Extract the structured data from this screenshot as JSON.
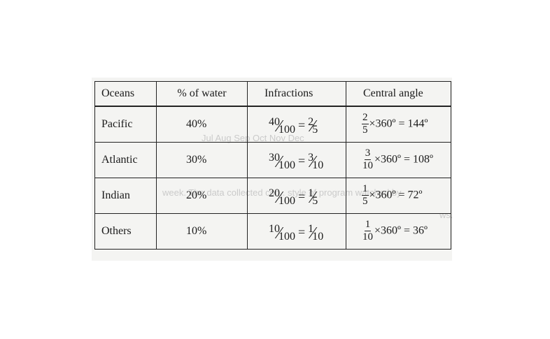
{
  "table": {
    "headers": [
      "Oceans",
      "% of water",
      "Infractions",
      "Central angle"
    ],
    "rows": [
      {
        "ocean": "Pacific",
        "percent": "40%",
        "infraction": {
          "num": "40",
          "den": "100",
          "snum": "2",
          "sden": "5"
        },
        "angle": {
          "num": "2",
          "den": "5",
          "text": "×360º = 144º"
        }
      },
      {
        "ocean": "Atlantic",
        "percent": "30%",
        "infraction": {
          "num": "30",
          "den": "100",
          "snum": "3",
          "sden": "10"
        },
        "angle": {
          "num": "3",
          "den": "10",
          "text": "×360º = 108º"
        }
      },
      {
        "ocean": "Indian",
        "percent": "20%",
        "infraction": {
          "num": "20",
          "den": "100",
          "snum": "1",
          "sden": "5"
        },
        "angle": {
          "num": "1",
          "den": "5",
          "text": "×360º = 72º"
        }
      },
      {
        "ocean": "Others",
        "percent": "10%",
        "infraction": {
          "num": "10",
          "den": "100",
          "snum": "1",
          "sden": "10"
        },
        "angle": {
          "num": "1",
          "den": "10",
          "text": "×360º = 36º"
        }
      }
    ]
  },
  "bleed_through": {
    "months": "Jul  Aug  Sep  Oct  Nov  Dec",
    "line1": "week. The data collected cor... style of program watched by",
    "line2": "ws."
  },
  "colors": {
    "ink": "#1a1a1a",
    "scan_bg": "#f4f4f2",
    "bleed": "#bdbdbd"
  }
}
